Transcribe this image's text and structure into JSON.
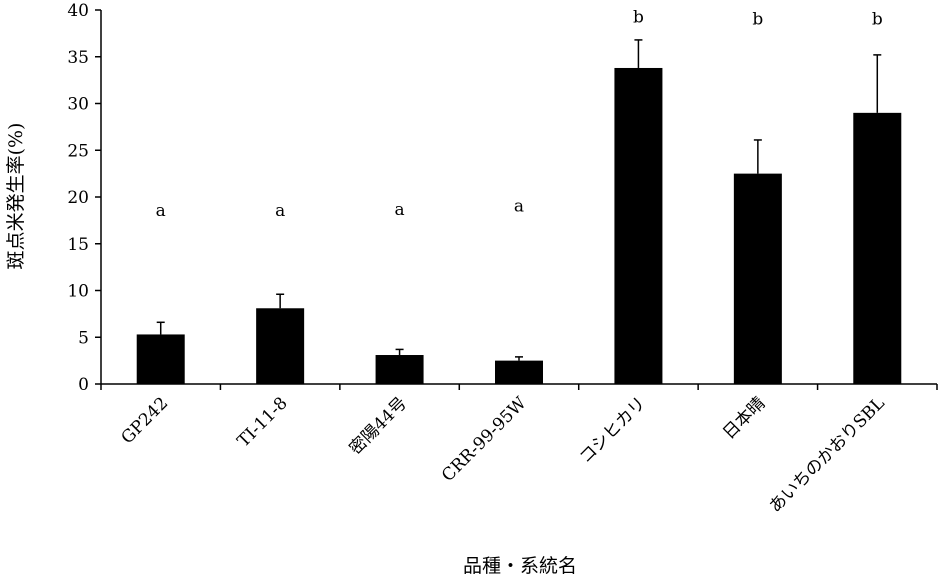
{
  "chart_data": {
    "type": "bar",
    "title": "",
    "xlabel": "品種・系統名",
    "ylabel": "斑点米発生率(%)",
    "ylim": [
      0,
      40
    ],
    "yticks": [
      0,
      5,
      10,
      15,
      20,
      25,
      30,
      35,
      40
    ],
    "categories": [
      "GP242",
      "TI-11-8",
      "密陽44号",
      "CRR-99-95W",
      "コシヒカリ",
      "日本晴",
      "あいちのかおりSBL"
    ],
    "values": [
      5.3,
      8.1,
      3.1,
      2.5,
      33.8,
      22.5,
      29.0
    ],
    "errors": [
      1.3,
      1.5,
      0.6,
      0.4,
      3.0,
      3.6,
      6.2
    ],
    "significance": [
      "a",
      "a",
      "a",
      "a",
      "b",
      "b",
      "b"
    ],
    "significance_y": [
      18.5,
      18.5,
      18.6,
      19.0,
      39.2,
      39.0,
      39.0
    ],
    "bar_color": "#000000",
    "grid": false
  }
}
